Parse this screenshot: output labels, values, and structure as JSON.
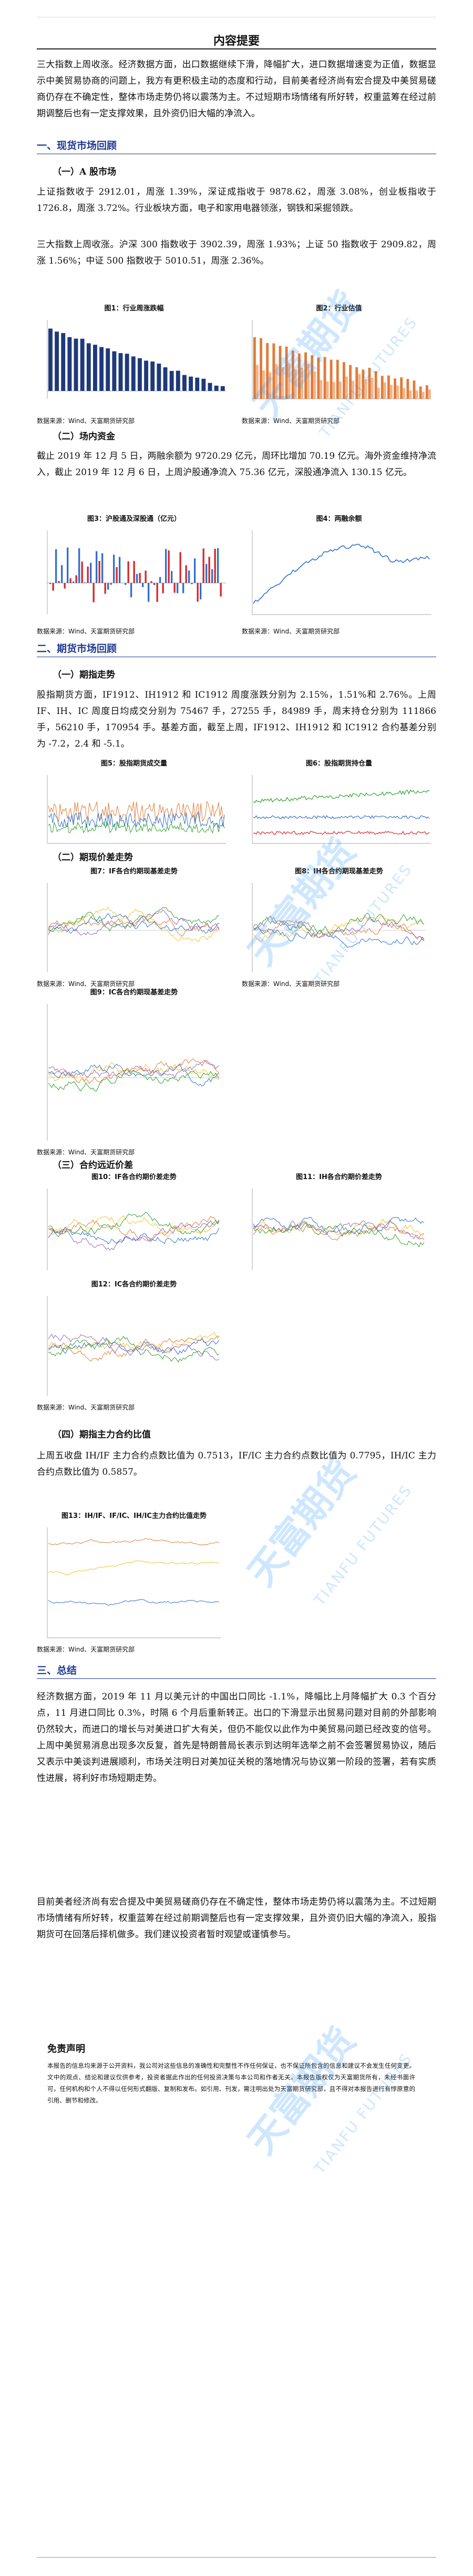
{
  "summary": {
    "title": "内容提要",
    "para": "三大指数上周收涨。经济数据方面，出口数据继续下滑，降幅扩大，进口数据增速变为正值，数据显示中美贸易协商的问题上，我方有更积极主动的态度和行动，目前美者经济尚有宏合提及中美贸易磋商仍存在不确定性，整体市场走势仍将以震荡为主。不过短期市场情绪有所好转，权重蓝筹在经过前期调整后也有一定支撑效果，且外资仍旧大幅的净流入。"
  },
  "section1": {
    "title": "一、现货市场回顾",
    "sub1": "（一）A 股市场",
    "para1": "上证指数收于 2912.01，周涨 1.39%，深证成指收于 9878.62，周涨 3.08%，创业板指收于 1726.8，周涨 3.72%。行业板块方面，电子和家用电器领涨，钢铁和采掘领跌。",
    "para2": "三大指数上周收涨。沪深 300 指数收于 3902.39，周涨 1.93%；上证 50 指数收于 2909.82，周涨 1.56%；中证 500 指数收于 5010.51，周涨 2.36%。",
    "sub2": "（二）场内资金",
    "para3": "截止 2019 年 12 月 5 日，两融余额为 9720.29 亿元，周环比增加 70.19 亿元。海外资金维持净流入，截止 2019 年 12 月 6 日，上周沪股通净流入 75.36 亿元，深股通净流入 130.15 亿元。"
  },
  "fig1": {
    "title": "图1：行业周涨跌幅",
    "source": "数据来源：Wind、天富期货研究部"
  },
  "fig2": {
    "title": "图2：行业估值",
    "source": "数据来源：Wind、天富期货研究部"
  },
  "fig3": {
    "title": "图3：沪股通及深股通（亿元）",
    "source": "数据来源：Wind、天富期货研究部"
  },
  "fig4": {
    "title": "图4：两融余额",
    "source": "数据来源：Wind、天富期货研究部"
  },
  "section2": {
    "title": "二、期货市场回顾",
    "sub1": "（一）期指走势",
    "para1": "股指期货方面，IF1912、IH1912 和 IC1912 周度涨跌分别为 2.15%，1.51%和 2.76%。上周 IF、IH、IC 周度日均成交分别为 75467 手，27255 手，84989 手，周末持仓分别为 111866 手，56210 手，170954 手。基差方面，截至上周，IF1912、IH1912 和 IC1912 合约基差分别为 -7.2，2.4 和 -5.1。",
    "sub2": "（二）期现价差走势",
    "sub3": "（三）合约远近价差",
    "sub4": "（四）期指主力合约比值",
    "para2": "上周五收盘 IH/IF 主力合约点数比值为 0.7513，IF/IC 主力合约点数比值为 0.7795，IH/IC 主力合约点数比值为 0.5857。"
  },
  "fig5": {
    "title": "图5：股指期货成交量",
    "source": ""
  },
  "fig6": {
    "title": "图6：股指期货持仓量",
    "source": ""
  },
  "fig7": {
    "title": "图7：IF各合约期现基差走势",
    "source": "数据来源：Wind、天富期货研究部"
  },
  "fig8": {
    "title": "图8：IH各合约期现基差走势",
    "source": "数据来源：Wind、天富期货研究部"
  },
  "fig9": {
    "title": "图9：IC各合约期现基差走势",
    "source": "数据来源：Wind、天富期货研究部"
  },
  "fig10": {
    "title": "图10：IF各合约期价差走势",
    "source": ""
  },
  "fig11": {
    "title": "图11：IH各合约期价差走势",
    "source": ""
  },
  "fig12": {
    "title": "图12：IC各合约期价差走势",
    "source": "数据来源：Wind、天富期货研究部"
  },
  "fig13": {
    "title": "图13：IH/IF、IF/IC、IH/IC主力合约比值走势",
    "source": "数据来源：Wind、天富期货研究部"
  },
  "section3": {
    "title": "三、总结",
    "para1": "经济数据方面，2019 年 11 月以美元计的中国出口同比 -1.1%，降幅比上月降幅扩大 0.3 个百分点，11 月进口同比 0.3%，时隔 6 个月后重新转正。出口的下滑显示出贸易问题对目前的外部影响仍然较大，而进口的增长与对美进口扩大有关，但仍不能仅以此作为中美贸易问题已经改变的信号。上周中美贸易消息出现多次反复，首先是特朗普局长表示到达明年选举之前不会签署贸易协议，随后又表示中美谈判进展顺利，市场关注明日对美加征关税的落地情况与协议第一阶段的签署，若有实质性进展，将利好市场短期走势。",
    "para2": "目前美者经济尚有宏合提及中美贸易磋商仍存在不确定性，整体市场走势仍将以震荡为主。不过短期市场情绪有所好转，权重蓝筹在经过前期调整后也有一定支撑效果，且外资仍旧大幅的净流入，股指期货可在回落后择机做多。我们建议投资者暂时观望或谨慎参与。"
  },
  "disclaimer": {
    "title": "免责声明",
    "para": "本报告的信息均来源于公开资料，我公司对这些信息的准确性和完整性不作任何保证，也不保证所包含的信息和建议不会发生任何变更。文中的观点、结论和建议仅供参考，投资者据此作出的任何投资决策与本公司和作者无关。本报告版权仅为天富期货所有，未经书面许可，任何机构和个人不得以任何形式翻版、复制和发布。如引用、刊发，需注明出处为天富期货研究部，且不得对本报告进行有悖原意的引用、删节和修改。"
  },
  "watermark": {
    "cn": "天富期货",
    "en": "TIANFU FUTURES"
  },
  "colors": {
    "heading": "#1f3a93",
    "bar": "#1f3a7a",
    "orange": "#e07b39",
    "blue": "#2f6fcf"
  }
}
